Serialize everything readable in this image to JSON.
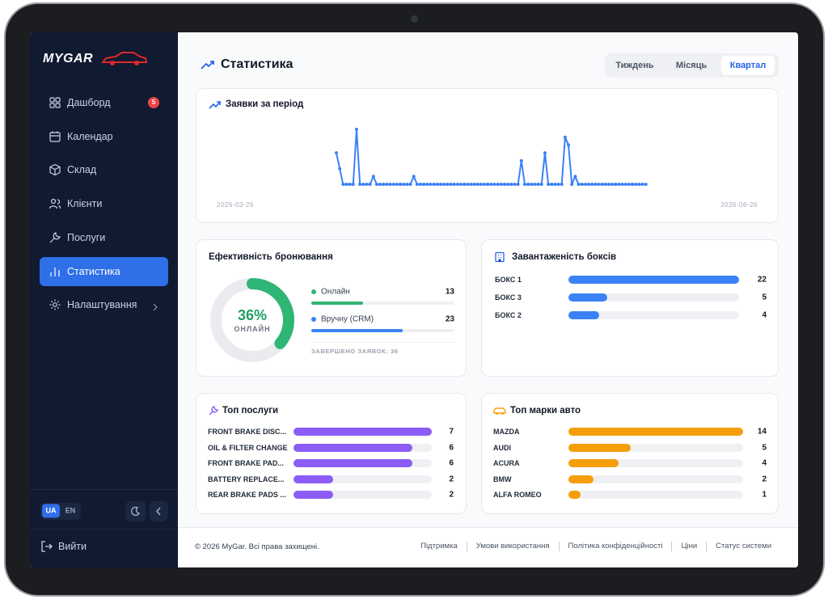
{
  "sidebar": {
    "logo": "MYGAR",
    "nav": [
      {
        "label": "Дашборд",
        "badge": 5
      },
      {
        "label": "Календар"
      },
      {
        "label": "Склад"
      },
      {
        "label": "Клієнти"
      },
      {
        "label": "Послуги"
      },
      {
        "label": "Статистика",
        "active": true
      },
      {
        "label": "Налаштування"
      }
    ],
    "languages": [
      "UA",
      "EN"
    ],
    "active_language": 0,
    "logout": "Вийти"
  },
  "header": {
    "title": "Статистика",
    "periods": [
      "Тиждень",
      "Місяць",
      "Квартал"
    ],
    "active_period": 2
  },
  "requests_chart": {
    "type": "line",
    "title": "Заявки за період",
    "date_start": "2026-03-26",
    "date_end": "2026-06-26",
    "color": "#3b82f6",
    "values": [
      4,
      2,
      0,
      0,
      0,
      0,
      7,
      0,
      0,
      0,
      0,
      1,
      0,
      0,
      0,
      0,
      0,
      0,
      0,
      0,
      0,
      0,
      0,
      1,
      0,
      0,
      0,
      0,
      0,
      0,
      0,
      0,
      0,
      0,
      0,
      0,
      0,
      0,
      0,
      0,
      0,
      0,
      0,
      0,
      0,
      0,
      0,
      0,
      0,
      0,
      0,
      0,
      0,
      0,
      0,
      3,
      0,
      0,
      0,
      0,
      0,
      0,
      4,
      0,
      0,
      0,
      0,
      0,
      6,
      5,
      0,
      1,
      0,
      0,
      0,
      0,
      0,
      0,
      0,
      0,
      0,
      0,
      0,
      0,
      0,
      0,
      0,
      0,
      0,
      0,
      0,
      0,
      0
    ]
  },
  "booking": {
    "title": "Ефективність бронювання",
    "percent": "36%",
    "percent_caption": "ОНЛАЙН",
    "items": [
      {
        "label": "Онлайн",
        "value": 13,
        "color": "#2fb574"
      },
      {
        "label": "Вручну (CRM)",
        "value": 23,
        "color": "#3b82f6"
      }
    ],
    "completed_label": "ЗАВЕРШЕНО ЗАЯВОК:",
    "completed": 36
  },
  "boxes": {
    "title": "Завантаженість боксів",
    "color": "#3b82f6",
    "rows": [
      {
        "label": "БОКС 1",
        "value": 22
      },
      {
        "label": "БОКС 3",
        "value": 5
      },
      {
        "label": "БОКС 2",
        "value": 4
      }
    ]
  },
  "services": {
    "title": "Топ послуги",
    "color": "#8b5cf6",
    "rows": [
      {
        "label": "FRONT BRAKE DISC...",
        "value": 7
      },
      {
        "label": "OIL & FILTER CHANGE",
        "value": 6
      },
      {
        "label": "FRONT BRAKE PAD...",
        "value": 6
      },
      {
        "label": "BATTERY REPLACE...",
        "value": 2
      },
      {
        "label": "REAR BRAKE PADS ...",
        "value": 2
      }
    ]
  },
  "brands": {
    "title": "Топ марки авто",
    "color": "#f59e0b",
    "rows": [
      {
        "label": "MAZDA",
        "value": 14
      },
      {
        "label": "AUDI",
        "value": 5
      },
      {
        "label": "ACURA",
        "value": 4
      },
      {
        "label": "BMW",
        "value": 2
      },
      {
        "label": "ALFA ROMEO",
        "value": 1
      }
    ]
  },
  "footer": {
    "copyright": "© 2026 MyGar. Всі права захищені.",
    "links": [
      "Підтримка",
      "Умови використання",
      "Політика конфіденційності",
      "Ціни",
      "Статус системи"
    ]
  }
}
